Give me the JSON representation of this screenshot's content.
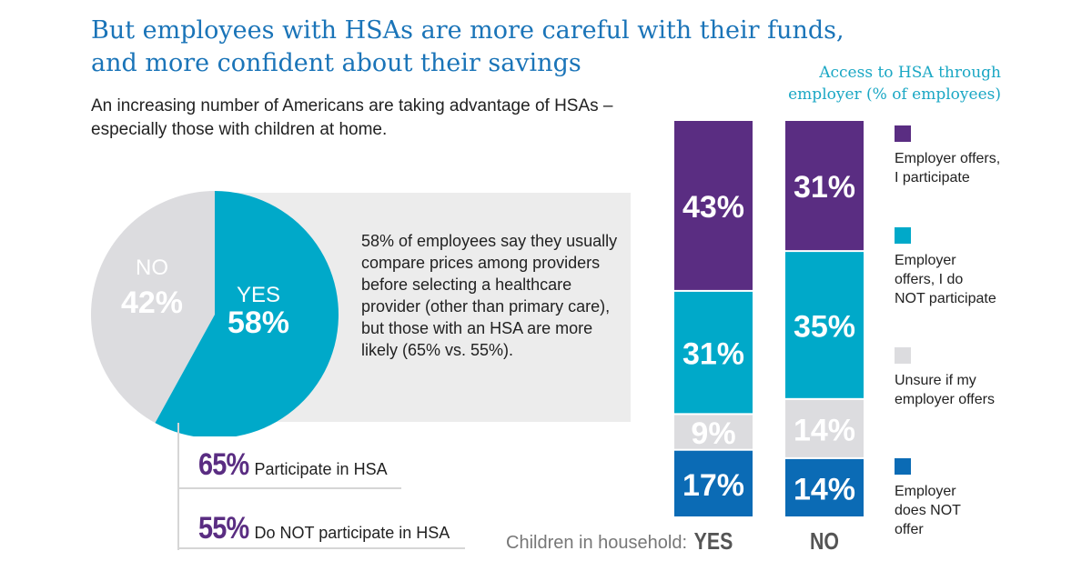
{
  "title": {
    "line1": "But employees with HSAs are more careful with their funds,",
    "line2": "and more confident about their savings"
  },
  "subtitle": "An increasing number of Americans are taking advantage of HSAs – especially those with children at home.",
  "pie": {
    "yes_label": "YES",
    "yes_pct": "58%",
    "no_label": "NO",
    "no_pct": "42%",
    "yes_value": 58,
    "no_value": 42
  },
  "note": "58% of employees say they usually compare prices among providers before selecting a healthcare provider (other than primary care), but those with an HSA are more likely (65% vs. 55%).",
  "participation": [
    {
      "pct": "65%",
      "label": "Participate in HSA"
    },
    {
      "pct": "55%",
      "label": "Do NOT participate in HSA"
    }
  ],
  "colors": {
    "purple": "#5a2d82",
    "cyan": "#00a9c9",
    "gray": "#dcdcdf",
    "blue": "#0b6bb5",
    "title_blue": "#1a74b8"
  },
  "chart_data": [
    {
      "type": "pie",
      "title": "",
      "slices": [
        {
          "label": "YES",
          "value": 58
        },
        {
          "label": "NO",
          "value": 42
        }
      ]
    },
    {
      "type": "bar",
      "stacked": true,
      "title": "Access to HSA through employer (% of employees)",
      "xlabel": "Children in household:",
      "categories": [
        "YES",
        "NO"
      ],
      "series": [
        {
          "name": "Employer offers, I participate",
          "values": [
            43,
            31
          ],
          "labels": [
            "43%",
            "31%"
          ]
        },
        {
          "name": "Employer offers, I do NOT participate",
          "values": [
            31,
            35
          ],
          "labels": [
            "31%",
            "35%"
          ]
        },
        {
          "name": "Unsure if my employer offers",
          "values": [
            9,
            14
          ],
          "labels": [
            "9%",
            "14%"
          ]
        },
        {
          "name": "Employer does NOT offer",
          "values": [
            17,
            14
          ],
          "labels": [
            "17%",
            "14%"
          ]
        }
      ],
      "ylim": [
        0,
        100
      ]
    }
  ],
  "legend": {
    "title": "Access to HSA through employer (% of employees)",
    "items": [
      "Employer offers, I participate",
      "Employer offers, I do NOT participate",
      "Unsure if my employer offers",
      "Employer does NOT offer"
    ]
  },
  "bars_xlabel": "Children in household:"
}
